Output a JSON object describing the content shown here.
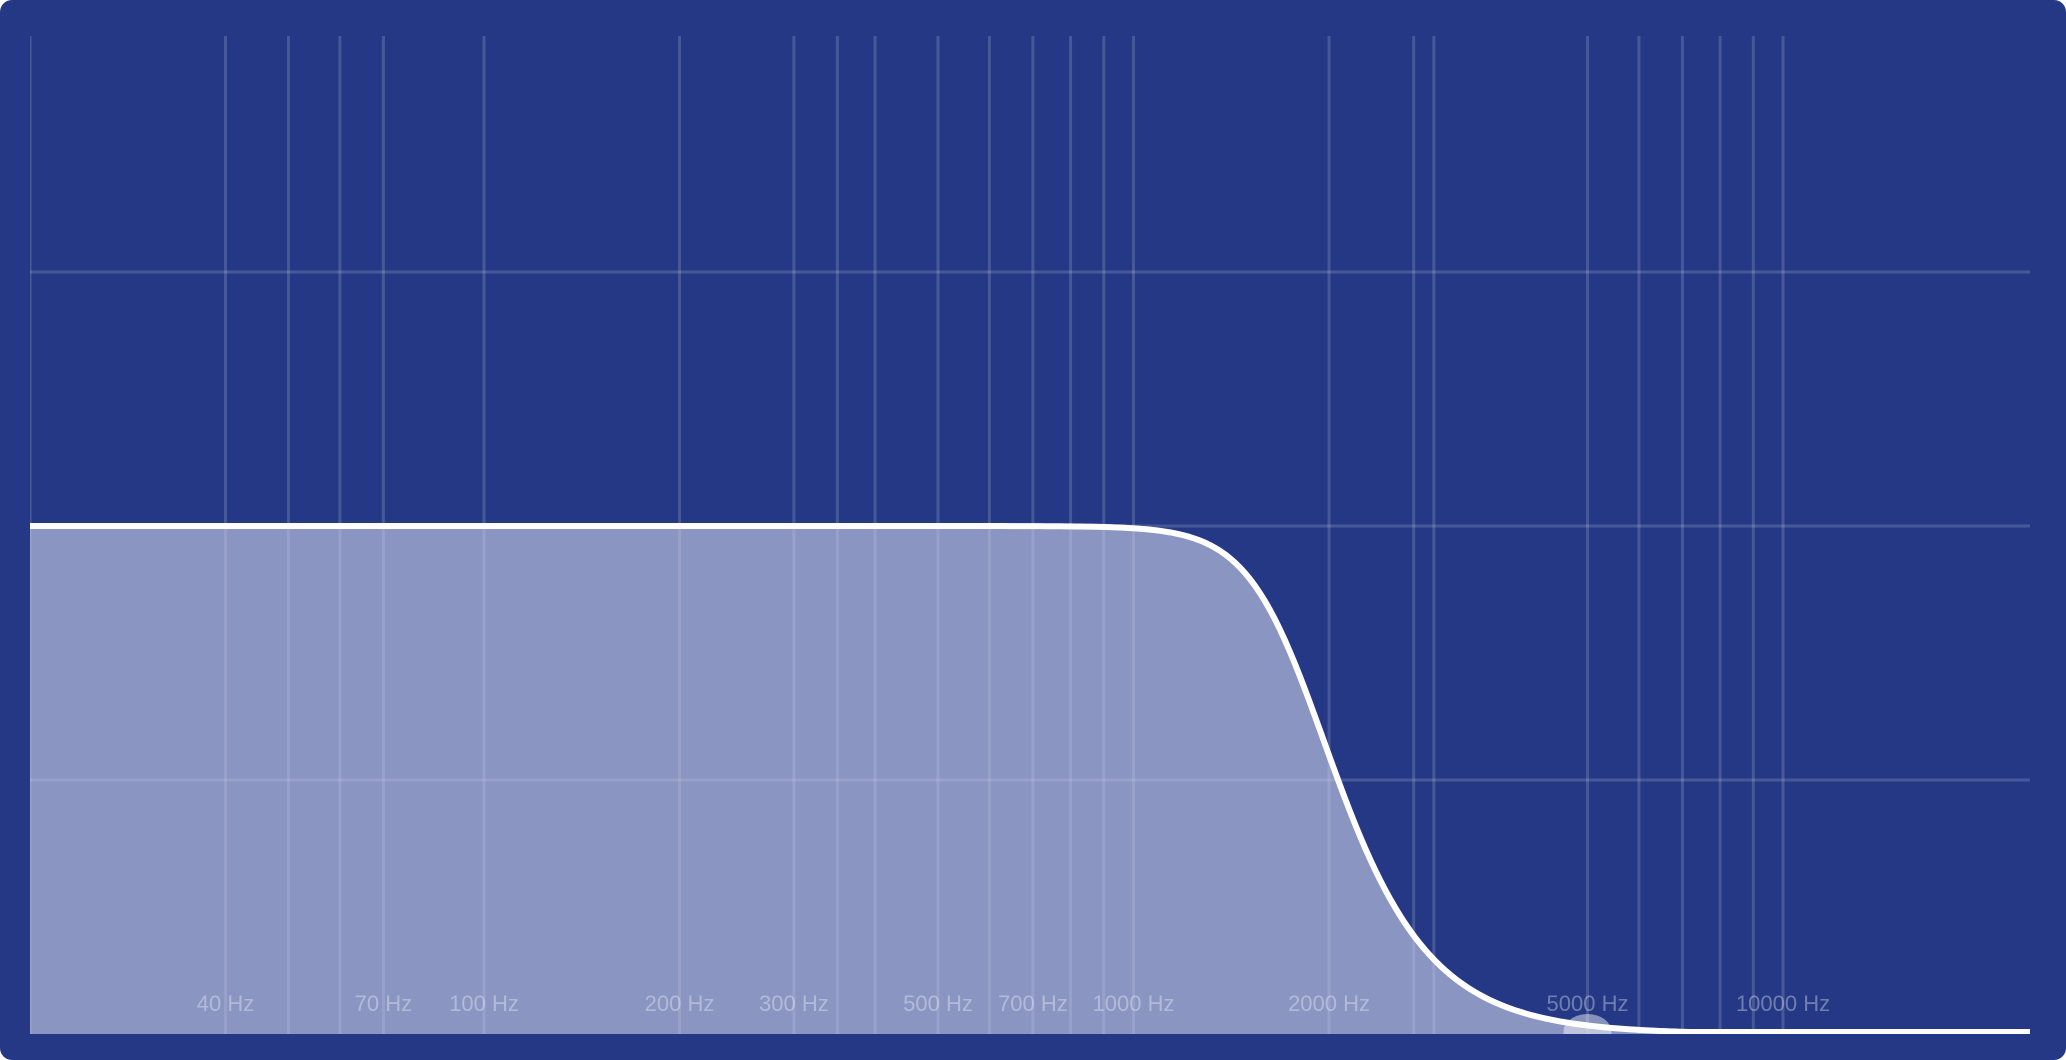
{
  "chart_data": {
    "type": "line",
    "x_scale": "log",
    "xlim": [
      20,
      24000
    ],
    "tick_labels": [
      {
        "freq": 40,
        "label": "40 Hz"
      },
      {
        "freq": 70,
        "label": "70 Hz"
      },
      {
        "freq": 100,
        "label": "100 Hz"
      },
      {
        "freq": 200,
        "label": "200 Hz"
      },
      {
        "freq": 300,
        "label": "300 Hz"
      },
      {
        "freq": 500,
        "label": "500 Hz"
      },
      {
        "freq": 700,
        "label": "700 Hz"
      },
      {
        "freq": 1000,
        "label": "1000 Hz"
      },
      {
        "freq": 2000,
        "label": "2000 Hz"
      },
      {
        "freq": 5000,
        "label": "5000 Hz"
      },
      {
        "freq": 10000,
        "label": "10000 Hz"
      }
    ],
    "vertical_grid_freqs": [
      20,
      40,
      50,
      60,
      70,
      100,
      200,
      300,
      350,
      400,
      500,
      600,
      700,
      800,
      900,
      1000,
      2000,
      2700,
      2900,
      5000,
      6000,
      7000,
      8000,
      9000,
      10000
    ],
    "horizontal_grid_levels": [
      0.25,
      0.5,
      0.75
    ],
    "grid": true,
    "filter": {
      "kind": "lowpass",
      "cutoff_hz": 1800,
      "order": 4,
      "passband_level": 0.5,
      "handle_freq": 5000
    },
    "colors": {
      "background": "#243885",
      "curve": "#ffffff",
      "fill": "#c9cfe8"
    }
  }
}
